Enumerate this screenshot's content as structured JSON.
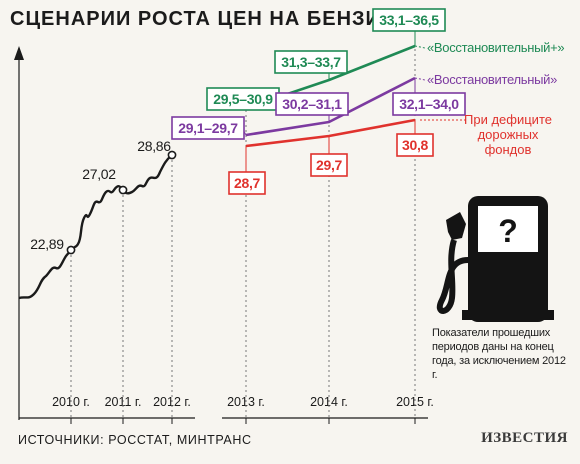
{
  "title": "СЦЕНАРИИ РОСТА ЦЕН НА БЕНЗИН",
  "sources": "ИСТОЧНИКИ: РОССТАТ, МИНТРАНС",
  "logo": "ИЗВЕСТИЯ",
  "note": "Показатели прошедших периодов даны на конец года, за исключением 2012 г.",
  "colors": {
    "background": "#f7f5f0",
    "history": "#1b1b1b",
    "green": "#1f8a55",
    "purple": "#7c3aa0",
    "red": "#e0322d"
  },
  "icon": "fuel-pump-icon",
  "chart_data": {
    "type": "line",
    "x_ticks": [
      "2010 г.",
      "2011 г.",
      "2012 г.",
      "2013 г.",
      "2014 г.",
      "2015 г."
    ],
    "history": {
      "marked_points": [
        {
          "x": "2010 г.",
          "value": 22.89,
          "label": "22,89"
        },
        {
          "x": "2011 г.",
          "value": 27.02,
          "label": "27,02"
        },
        {
          "x": "2012 г.",
          "value": 28.86,
          "label": "28,86"
        }
      ]
    },
    "series": [
      {
        "name": "«Восстановительный+»",
        "color": "#1f8a55",
        "x": [
          "2013 г.",
          "2014 г.",
          "2015 г."
        ],
        "values": [
          30.2,
          32.5,
          34.8
        ],
        "labels": [
          "29,5–30,9",
          "31,3–33,7",
          "33,1–36,5"
        ]
      },
      {
        "name": "«Восстановительный»",
        "color": "#7c3aa0",
        "x": [
          "2013 г.",
          "2014 г.",
          "2015 г."
        ],
        "values": [
          29.4,
          30.65,
          33.05
        ],
        "labels": [
          "29,1–29,7",
          "30,2–31,1",
          "32,1–34,0"
        ]
      },
      {
        "name": "При дефиците дорожных фондов",
        "color": "#e0322d",
        "x": [
          "2013 г.",
          "2014 г.",
          "2015 г."
        ],
        "values": [
          28.7,
          29.7,
          30.8
        ],
        "labels": [
          "28,7",
          "29,7",
          "30,8"
        ]
      }
    ],
    "grid": false,
    "legend": "line-end labels, right"
  }
}
